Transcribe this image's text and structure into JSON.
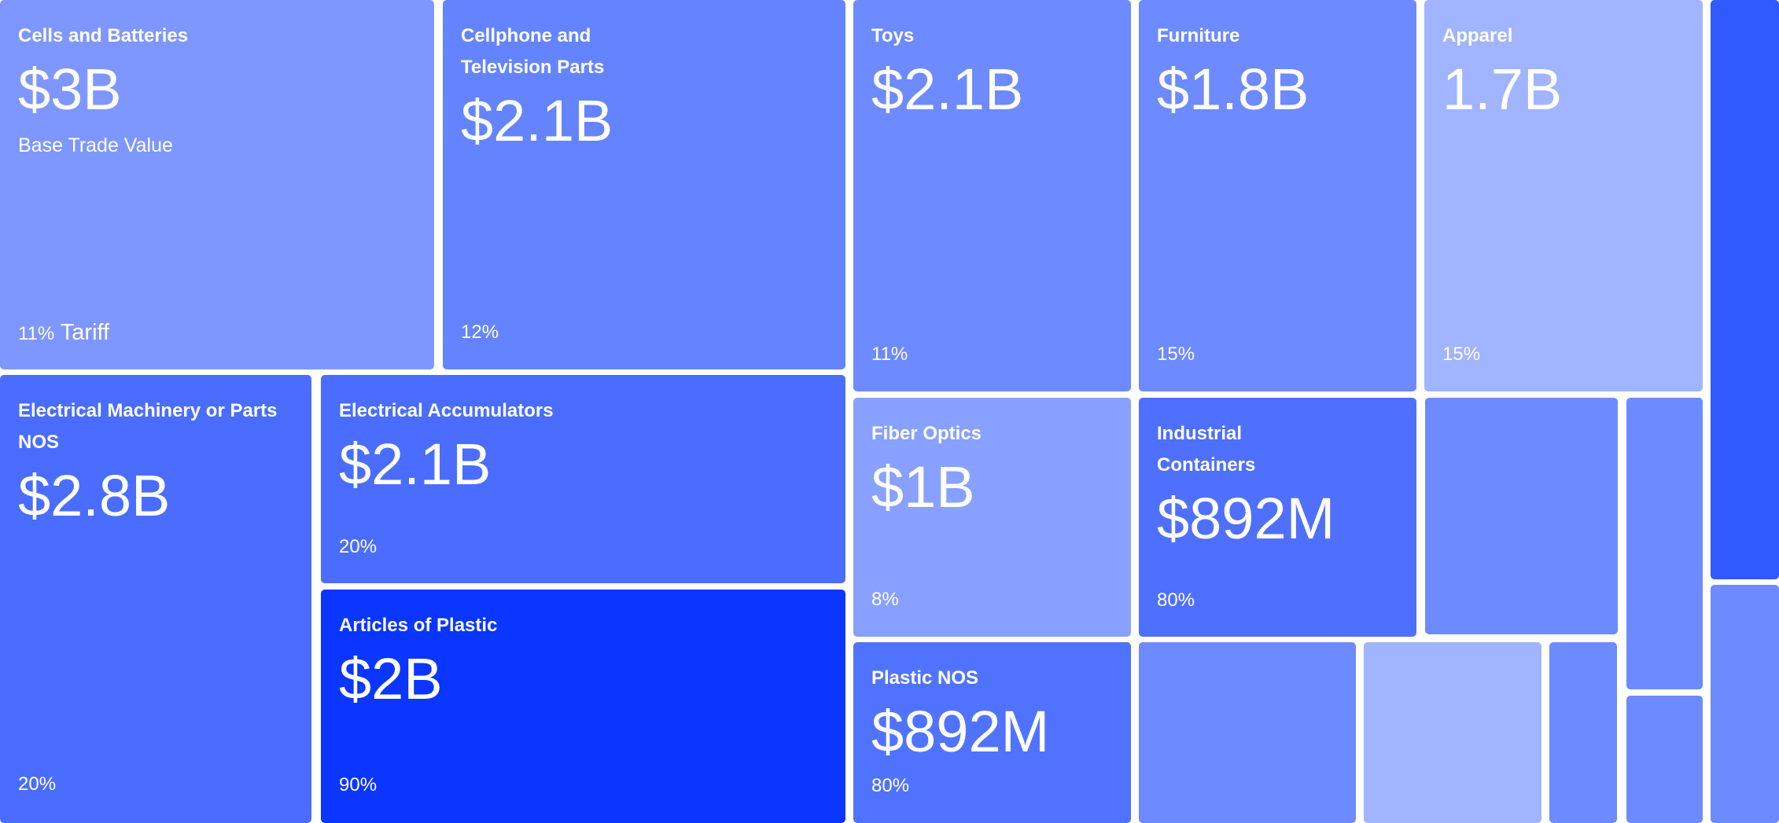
{
  "chart_data": {
    "type": "treemap",
    "value_caption": "Base Trade Value",
    "rate_caption": "Tariff",
    "items": [
      {
        "name": "Cells and Batteries",
        "value_label": "$3B",
        "value": 3.0,
        "tariff": "11%",
        "color": "#7e97ff"
      },
      {
        "name": "Cellphone and Television Parts",
        "value_label": "$2.1B",
        "value": 2.1,
        "tariff": "12%",
        "color": "#6484ff"
      },
      {
        "name": "Toys",
        "value_label": "$2.1B",
        "value": 2.1,
        "tariff": "11%",
        "color": "#6d8aff"
      },
      {
        "name": "Furniture",
        "value_label": "$1.8B",
        "value": 1.8,
        "tariff": "15%",
        "color": "#6d8aff"
      },
      {
        "name": "Apparel",
        "value_label": "1.7B",
        "value": 1.7,
        "tariff": "15%",
        "color": "#a1b4ff"
      },
      {
        "name": "",
        "value_label": "",
        "value": null,
        "tariff": "",
        "color": "#3059ff"
      },
      {
        "name": "Electrical Machinery or Parts NOS",
        "value_label": "$2.8B",
        "value": 2.8,
        "tariff": "20%",
        "color": "#4a6dff"
      },
      {
        "name": "Electrical Accumulators",
        "value_label": "$2.1B",
        "value": 2.1,
        "tariff": "20%",
        "color": "#4a6dff"
      },
      {
        "name": "Articles of Plastic",
        "value_label": "$2B",
        "value": 2.0,
        "tariff": "90%",
        "color": "#0a36ff"
      },
      {
        "name": "Fiber Optics",
        "value_label": "$1B",
        "value": 1.0,
        "tariff": "8%",
        "color": "#88a0ff"
      },
      {
        "name": "Industrial Containers",
        "value_label": "$892M",
        "value": 0.892,
        "tariff": "80%",
        "color": "#4f6fff"
      },
      {
        "name": "Plastic NOS",
        "value_label": "$892M",
        "value": 0.892,
        "tariff": "80%",
        "color": "#5073ff"
      },
      {
        "name": "",
        "value_label": "",
        "value": null,
        "tariff": "",
        "color": "#6d8aff"
      },
      {
        "name": "",
        "value_label": "",
        "value": null,
        "tariff": "",
        "color": "#6d8aff"
      },
      {
        "name": "",
        "value_label": "",
        "value": null,
        "tariff": "",
        "color": "#6d8aff"
      },
      {
        "name": "",
        "value_label": "",
        "value": null,
        "tariff": "",
        "color": "#a1b4ff"
      },
      {
        "name": "",
        "value_label": "",
        "value": null,
        "tariff": "",
        "color": "#6d8aff"
      },
      {
        "name": "",
        "value_label": "",
        "value": null,
        "tariff": "",
        "color": "#6d8aff"
      },
      {
        "name": "",
        "value_label": "",
        "value": null,
        "tariff": "",
        "color": "#6d8aff"
      }
    ]
  }
}
